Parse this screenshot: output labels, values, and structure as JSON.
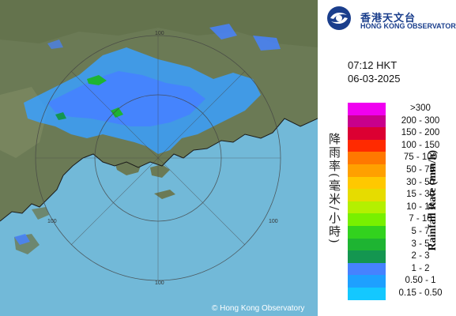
{
  "header": {
    "logo_icon": "hko-logo-icon",
    "logo_name_cn": "香港天文台",
    "logo_name_en": "HONG KONG OBSERVATORY"
  },
  "timestamp": {
    "time": "07:12 HKT",
    "date": "06-03-2025"
  },
  "legend": {
    "title_cn": "降雨率(毫米/小時)",
    "title_en": "Rainfall Rate (mm/h)",
    "items": [
      {
        "label": ">300",
        "color": "#f000f0"
      },
      {
        "label": "200 - 300",
        "color": "#c8008c"
      },
      {
        "label": "150 - 200",
        "color": "#dc0032"
      },
      {
        "label": "100 - 150",
        "color": "#ff2a00"
      },
      {
        "label": "75 - 100",
        "color": "#ff7800"
      },
      {
        "label": "50 - 75",
        "color": "#ffa000"
      },
      {
        "label": "30 - 50",
        "color": "#ffc800"
      },
      {
        "label": "15 - 30",
        "color": "#e6dc00"
      },
      {
        "label": "10 - 15",
        "color": "#b4f000"
      },
      {
        "label": "7 - 10",
        "color": "#78f000"
      },
      {
        "label": "5 - 7",
        "color": "#32d21e"
      },
      {
        "label": "3 - 5",
        "color": "#1eb432"
      },
      {
        "label": "2 - 3",
        "color": "#149650"
      },
      {
        "label": "1 - 2",
        "color": "#4682ff"
      },
      {
        "label": "0.50 - 1",
        "color": "#1ea0ff"
      },
      {
        "label": "0.15 - 0.50",
        "color": "#14c8ff"
      }
    ]
  },
  "map": {
    "range_label": "100",
    "copyright": "© Hong Kong Observatory"
  }
}
